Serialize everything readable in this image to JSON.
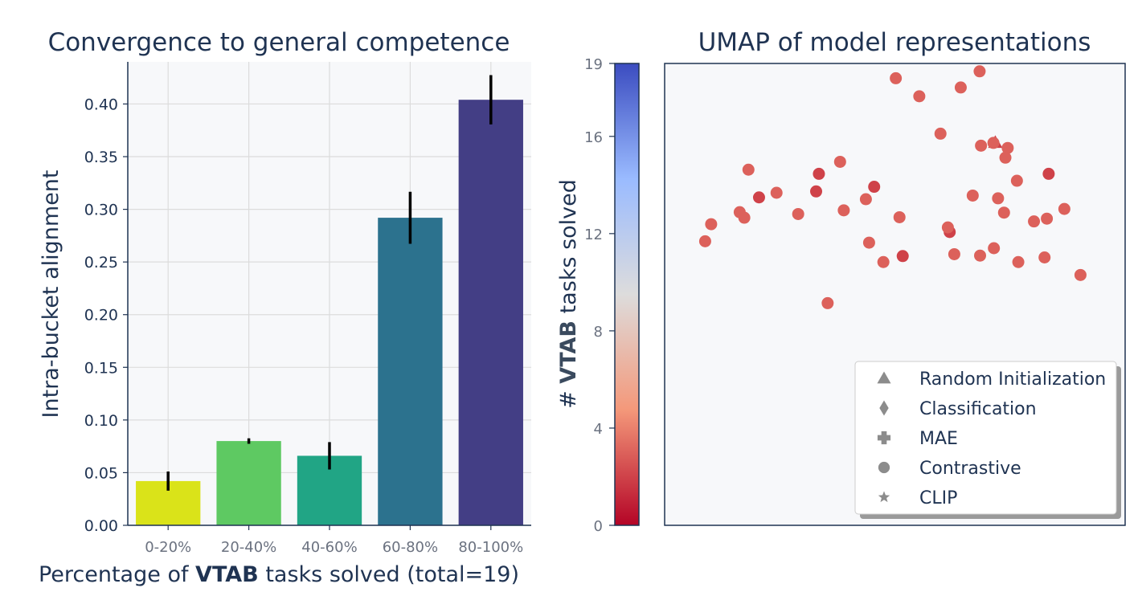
{
  "chart_data": [
    {
      "type": "bar",
      "title": "Convergence to general competence",
      "xlabel_prefix": "Percentage of ",
      "xlabel_bold": "VTAB",
      "xlabel_suffix": " tasks solved (total=19)",
      "ylabel": "Intra-bucket alignment",
      "categories": [
        "0-20%",
        "20-40%",
        "40-60%",
        "60-80%",
        "80-100%"
      ],
      "values": [
        0.042,
        0.08,
        0.066,
        0.292,
        0.404
      ],
      "errors": [
        0.007,
        0.002,
        0.01,
        0.019,
        0.018
      ],
      "colors": [
        "#dae319",
        "#5ec962",
        "#21a585",
        "#2c728e",
        "#433e85"
      ],
      "ylim": [
        0,
        0.44
      ],
      "yticks": [
        "0.00",
        "0.05",
        "0.10",
        "0.15",
        "0.20",
        "0.25",
        "0.30",
        "0.35",
        "0.40"
      ],
      "grid": true
    },
    {
      "type": "scatter",
      "title": "UMAP of model representations",
      "colorbar_label_prefix": "# ",
      "colorbar_label_bold": "VTAB",
      "colorbar_label_suffix": " tasks solved",
      "colorbar_ticks": [
        "0",
        "4",
        "8",
        "12",
        "16",
        "19"
      ],
      "colorbar_range": [
        0,
        19
      ],
      "colormap": [
        "#b40426",
        "#f4987a",
        "#dddcdc",
        "#9abbff",
        "#3b4cc0"
      ],
      "xlim": [
        0,
        100
      ],
      "ylim": [
        0,
        100
      ],
      "legend_position": "lower-right",
      "legend": [
        {
          "marker": "triangle",
          "label": "Random Initialization"
        },
        {
          "marker": "diamond",
          "label": "Classification"
        },
        {
          "marker": "plus",
          "label": "MAE"
        },
        {
          "marker": "circle",
          "label": "Contrastive"
        },
        {
          "marker": "star",
          "label": "CLIP"
        }
      ],
      "points": [
        {
          "x": 71.8,
          "y": 82.9,
          "m": "triangle",
          "c": 2
        },
        {
          "x": 50.2,
          "y": 96.8,
          "m": "circle",
          "c": 3
        },
        {
          "x": 55.3,
          "y": 92.9,
          "m": "circle",
          "c": 3
        },
        {
          "x": 64.3,
          "y": 94.8,
          "m": "circle",
          "c": 3
        },
        {
          "x": 18.2,
          "y": 77.0,
          "m": "circle",
          "c": 3
        },
        {
          "x": 38.1,
          "y": 78.7,
          "m": "circle",
          "c": 3
        },
        {
          "x": 24.3,
          "y": 72.0,
          "m": "circle",
          "c": 3
        },
        {
          "x": 43.7,
          "y": 70.6,
          "m": "circle",
          "c": 3
        },
        {
          "x": 10.1,
          "y": 65.2,
          "m": "circle",
          "c": 3
        },
        {
          "x": 16.3,
          "y": 67.8,
          "m": "circle",
          "c": 3
        },
        {
          "x": 72.4,
          "y": 70.8,
          "m": "circle",
          "c": 3
        },
        {
          "x": 73.7,
          "y": 67.7,
          "m": "circle",
          "c": 3
        },
        {
          "x": 38.9,
          "y": 68.2,
          "m": "circle",
          "c": 3
        },
        {
          "x": 8.8,
          "y": 61.5,
          "m": "circle",
          "c": 3
        },
        {
          "x": 17.3,
          "y": 66.6,
          "m": "circle",
          "c": 3
        },
        {
          "x": 35.4,
          "y": 48.1,
          "m": "circle",
          "c": 3
        },
        {
          "x": 68.7,
          "y": 82.2,
          "m": "circle",
          "c": 3
        },
        {
          "x": 29.0,
          "y": 67.4,
          "m": "circle",
          "c": 3
        },
        {
          "x": 83.0,
          "y": 66.4,
          "m": "circle",
          "c": 3
        },
        {
          "x": 90.3,
          "y": 54.2,
          "m": "circle",
          "c": 3
        },
        {
          "x": 20.5,
          "y": 71.0,
          "m": "circle",
          "c": 2
        },
        {
          "x": 33.5,
          "y": 76.1,
          "m": "circle",
          "c": 2
        },
        {
          "x": 32.9,
          "y": 72.3,
          "m": "circle",
          "c": 2
        },
        {
          "x": 45.5,
          "y": 73.3,
          "m": "circle",
          "c": 2
        },
        {
          "x": 83.4,
          "y": 76.1,
          "m": "circle",
          "c": 2
        },
        {
          "x": 61.9,
          "y": 63.5,
          "m": "circle",
          "c": 2
        },
        {
          "x": 51.7,
          "y": 58.3,
          "m": "circle",
          "c": 2
        },
        {
          "x": 47.5,
          "y": 57.0,
          "m": "circle",
          "c": 3
        },
        {
          "x": 44.4,
          "y": 61.2,
          "m": "circle",
          "c": 3
        },
        {
          "x": 51.0,
          "y": 66.7,
          "m": "circle",
          "c": 3
        },
        {
          "x": 61.5,
          "y": 64.5,
          "m": "circle",
          "c": 3
        },
        {
          "x": 66.9,
          "y": 71.4,
          "m": "circle",
          "c": 3
        },
        {
          "x": 59.9,
          "y": 84.8,
          "m": "circle",
          "c": 3
        },
        {
          "x": 74.5,
          "y": 81.7,
          "m": "circle",
          "c": 3
        },
        {
          "x": 68.4,
          "y": 98.3,
          "m": "circle",
          "c": 3
        },
        {
          "x": 71.4,
          "y": 82.8,
          "m": "circle",
          "c": 3
        },
        {
          "x": 74.0,
          "y": 79.6,
          "m": "circle",
          "c": 3
        },
        {
          "x": 76.5,
          "y": 74.6,
          "m": "circle",
          "c": 3
        },
        {
          "x": 86.8,
          "y": 68.5,
          "m": "circle",
          "c": 3
        },
        {
          "x": 80.2,
          "y": 65.8,
          "m": "circle",
          "c": 3
        },
        {
          "x": 82.5,
          "y": 58.0,
          "m": "circle",
          "c": 3
        },
        {
          "x": 76.8,
          "y": 57.0,
          "m": "circle",
          "c": 3
        },
        {
          "x": 71.5,
          "y": 60.0,
          "m": "circle",
          "c": 3
        },
        {
          "x": 68.5,
          "y": 58.4,
          "m": "circle",
          "c": 3
        },
        {
          "x": 62.9,
          "y": 58.7,
          "m": "circle",
          "c": 3
        }
      ]
    }
  ]
}
